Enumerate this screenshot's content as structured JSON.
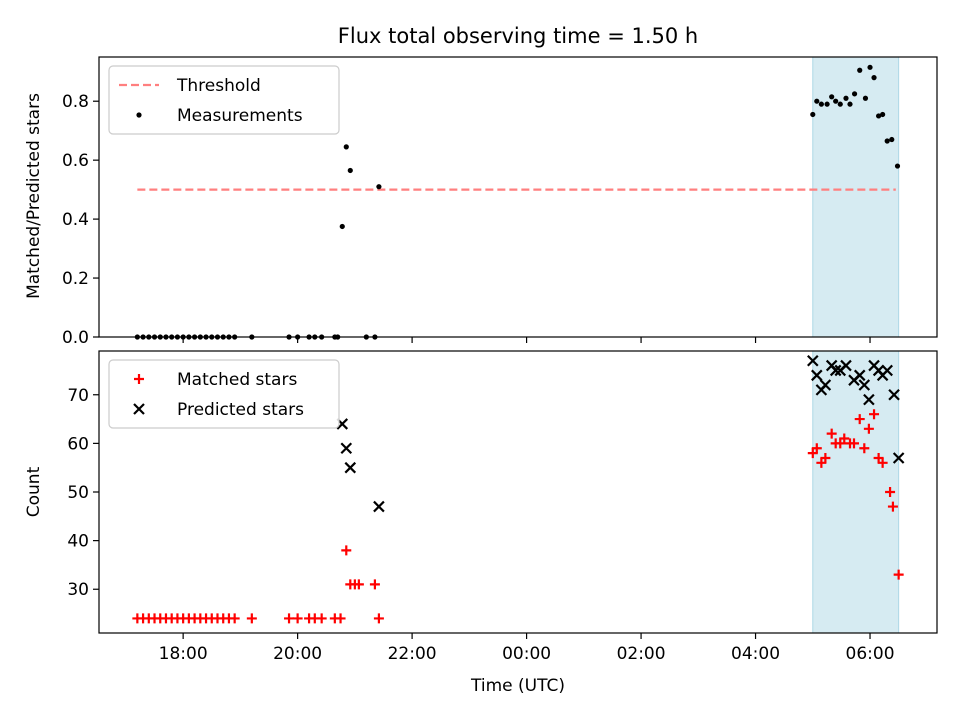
{
  "chart_data": {
    "title": "Flux total observing time = 1.50 h",
    "xlabel": "Time (UTC)",
    "x_ticks": [
      {
        "h": 18,
        "label": "18:00"
      },
      {
        "h": 20,
        "label": "20:00"
      },
      {
        "h": 22,
        "label": "22:00"
      },
      {
        "h": 24,
        "label": "00:00"
      },
      {
        "h": 26,
        "label": "02:00"
      },
      {
        "h": 28,
        "label": "04:00"
      },
      {
        "h": 30,
        "label": "06:00"
      }
    ],
    "xlim": [
      16.53,
      31.17
    ],
    "shaded_region": {
      "x": [
        29.0,
        30.5
      ],
      "color": "#add8e6"
    },
    "panels": [
      {
        "type": "scatter",
        "ylabel": "Matched/Predicted stars",
        "ylim": [
          0.0,
          0.95
        ],
        "y_ticks": [
          {
            "v": 0.0,
            "label": "0.0"
          },
          {
            "v": 0.2,
            "label": "0.2"
          },
          {
            "v": 0.4,
            "label": "0.4"
          },
          {
            "v": 0.6,
            "label": "0.6"
          },
          {
            "v": 0.8,
            "label": "0.8"
          }
        ],
        "legend": "top-left",
        "threshold": {
          "name": "Threshold",
          "value": 0.5,
          "x": [
            17.2,
            30.45
          ],
          "color": "#ff7f7f"
        },
        "series": [
          {
            "name": "Measurements",
            "marker": "dot",
            "color": "#000000",
            "points": [
              [
                17.2,
                0
              ],
              [
                17.3,
                0
              ],
              [
                17.4,
                0
              ],
              [
                17.5,
                0
              ],
              [
                17.6,
                0
              ],
              [
                17.7,
                0
              ],
              [
                17.8,
                0
              ],
              [
                17.9,
                0
              ],
              [
                18.0,
                0
              ],
              [
                18.1,
                0
              ],
              [
                18.2,
                0
              ],
              [
                18.3,
                0
              ],
              [
                18.4,
                0
              ],
              [
                18.5,
                0
              ],
              [
                18.6,
                0
              ],
              [
                18.7,
                0
              ],
              [
                18.8,
                0
              ],
              [
                18.9,
                0
              ],
              [
                19.2,
                0
              ],
              [
                19.85,
                0
              ],
              [
                20.0,
                0
              ],
              [
                20.2,
                0
              ],
              [
                20.3,
                0
              ],
              [
                20.42,
                0
              ],
              [
                20.65,
                0
              ],
              [
                20.7,
                0
              ],
              [
                21.2,
                0
              ],
              [
                21.35,
                0
              ],
              [
                20.78,
                0.375
              ],
              [
                20.85,
                0.645
              ],
              [
                20.92,
                0.565
              ],
              [
                21.42,
                0.51
              ],
              [
                29.0,
                0.755
              ],
              [
                29.07,
                0.8
              ],
              [
                29.15,
                0.79
              ],
              [
                29.25,
                0.79
              ],
              [
                29.33,
                0.815
              ],
              [
                29.4,
                0.8
              ],
              [
                29.48,
                0.79
              ],
              [
                29.58,
                0.81
              ],
              [
                29.65,
                0.79
              ],
              [
                29.73,
                0.825
              ],
              [
                29.82,
                0.905
              ],
              [
                29.92,
                0.81
              ],
              [
                30.0,
                0.915
              ],
              [
                30.07,
                0.88
              ],
              [
                30.15,
                0.75
              ],
              [
                30.22,
                0.755
              ],
              [
                30.3,
                0.665
              ],
              [
                30.38,
                0.67
              ],
              [
                30.48,
                0.58
              ]
            ]
          }
        ]
      },
      {
        "type": "scatter",
        "ylabel": "Count",
        "ylim": [
          21,
          79
        ],
        "y_ticks": [
          {
            "v": 30,
            "label": "30"
          },
          {
            "v": 40,
            "label": "40"
          },
          {
            "v": 50,
            "label": "50"
          },
          {
            "v": 60,
            "label": "60"
          },
          {
            "v": 70,
            "label": "70"
          }
        ],
        "legend": "top-left",
        "series": [
          {
            "name": "Matched stars",
            "marker": "plus",
            "color": "#ff0000",
            "points": [
              [
                17.2,
                24
              ],
              [
                17.3,
                24
              ],
              [
                17.4,
                24
              ],
              [
                17.5,
                24
              ],
              [
                17.6,
                24
              ],
              [
                17.7,
                24
              ],
              [
                17.8,
                24
              ],
              [
                17.9,
                24
              ],
              [
                18.0,
                24
              ],
              [
                18.1,
                24
              ],
              [
                18.2,
                24
              ],
              [
                18.3,
                24
              ],
              [
                18.4,
                24
              ],
              [
                18.5,
                24
              ],
              [
                18.6,
                24
              ],
              [
                18.7,
                24
              ],
              [
                18.8,
                24
              ],
              [
                18.9,
                24
              ],
              [
                19.2,
                24
              ],
              [
                19.85,
                24
              ],
              [
                20.0,
                24
              ],
              [
                20.2,
                24
              ],
              [
                20.3,
                24
              ],
              [
                20.42,
                24
              ],
              [
                20.65,
                24
              ],
              [
                20.75,
                24
              ],
              [
                21.42,
                24
              ],
              [
                20.85,
                38
              ],
              [
                20.92,
                31
              ],
              [
                21.0,
                31
              ],
              [
                21.07,
                31
              ],
              [
                21.35,
                31
              ],
              [
                29.0,
                58
              ],
              [
                29.07,
                59
              ],
              [
                29.15,
                56
              ],
              [
                29.22,
                57
              ],
              [
                29.33,
                62
              ],
              [
                29.4,
                60
              ],
              [
                29.48,
                60
              ],
              [
                29.55,
                61
              ],
              [
                29.65,
                60
              ],
              [
                29.72,
                60
              ],
              [
                29.82,
                65
              ],
              [
                29.9,
                59
              ],
              [
                29.98,
                63
              ],
              [
                30.07,
                66
              ],
              [
                30.15,
                57
              ],
              [
                30.22,
                56
              ],
              [
                30.35,
                50
              ],
              [
                30.4,
                47
              ],
              [
                30.5,
                33
              ]
            ]
          },
          {
            "name": "Predicted stars",
            "marker": "x",
            "color": "#000000",
            "points": [
              [
                20.78,
                64
              ],
              [
                20.85,
                59
              ],
              [
                20.92,
                55
              ],
              [
                21.42,
                47
              ],
              [
                29.0,
                77
              ],
              [
                29.07,
                74
              ],
              [
                29.15,
                71
              ],
              [
                29.22,
                72
              ],
              [
                29.33,
                76
              ],
              [
                29.4,
                75
              ],
              [
                29.48,
                75
              ],
              [
                29.58,
                76
              ],
              [
                29.72,
                73
              ],
              [
                29.82,
                74
              ],
              [
                29.9,
                72
              ],
              [
                29.98,
                69
              ],
              [
                30.07,
                76
              ],
              [
                30.15,
                75
              ],
              [
                30.22,
                74
              ],
              [
                30.3,
                75
              ],
              [
                30.42,
                70
              ],
              [
                30.5,
                57
              ]
            ]
          }
        ]
      }
    ]
  }
}
